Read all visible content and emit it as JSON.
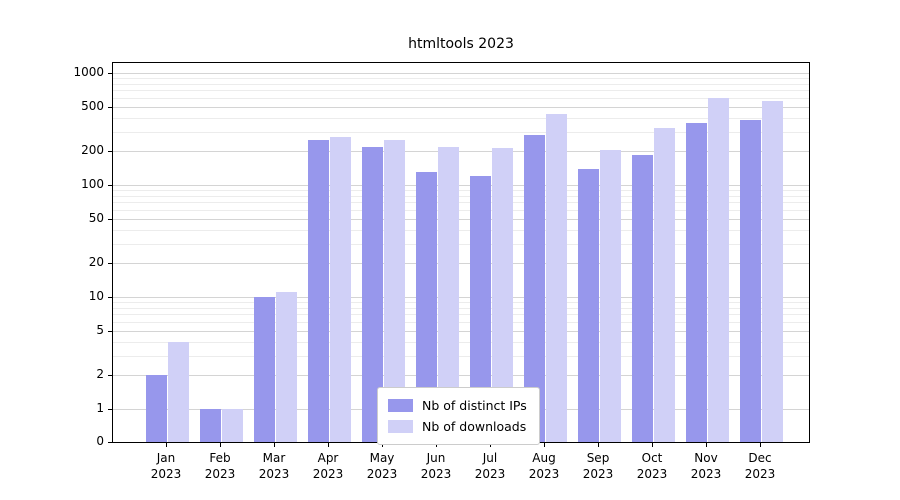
{
  "chart_data": {
    "type": "bar",
    "title": "htmltools 2023",
    "scale": "symlog",
    "grid": true,
    "legend_position": "bottom-center",
    "categories": [
      "Jan 2023",
      "Feb 2023",
      "Mar 2023",
      "Apr 2023",
      "May 2023",
      "Jun 2023",
      "Jul 2023",
      "Aug 2023",
      "Sep 2023",
      "Oct 2023",
      "Nov 2023",
      "Dec 2023"
    ],
    "series": [
      {
        "name": "Nb of distinct IPs",
        "color": "#9797ec",
        "values": [
          2,
          1,
          10,
          250,
          220,
          130,
          120,
          280,
          140,
          185,
          360,
          380
        ]
      },
      {
        "name": "Nb of downloads",
        "color": "#d0d0f7",
        "values": [
          4,
          1,
          11,
          270,
          250,
          220,
          215,
          430,
          205,
          320,
          600,
          560
        ]
      }
    ],
    "y_ticks": [
      0,
      1,
      2,
      5,
      10,
      20,
      50,
      100,
      200,
      500,
      1000
    ],
    "ylim": [
      0,
      1000
    ],
    "xlabel": "",
    "ylabel": ""
  }
}
